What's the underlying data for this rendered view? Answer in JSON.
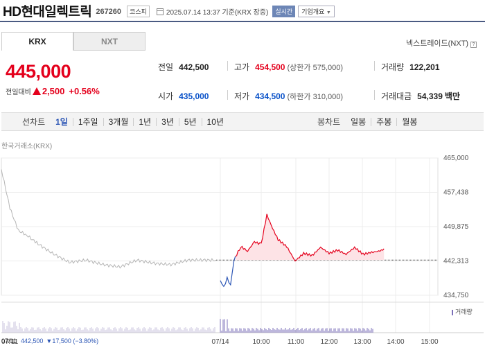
{
  "header": {
    "stock_name": "HD현대일렉트릭",
    "stock_code": "267260",
    "market": "코스피",
    "timestamp": "2025.07.14 13:37 기준(KRX 장중)",
    "realtime_label": "실시간",
    "company_button": "기업개요"
  },
  "tabs": [
    "KRX",
    "NXT"
  ],
  "nxt_link": "넥스트레이드(NXT)",
  "price": "445,000",
  "change": {
    "label": "전일대비",
    "value": "2,500",
    "percent": "+0.56%",
    "direction": "up"
  },
  "stats": {
    "prev_close": {
      "label": "전일",
      "value": "442,500"
    },
    "high": {
      "label": "고가",
      "value": "454,500",
      "limit_label": "상한가",
      "limit": "575,000"
    },
    "volume": {
      "label": "거래량",
      "value": "122,201"
    },
    "open": {
      "label": "시가",
      "value": "435,000"
    },
    "low": {
      "label": "저가",
      "value": "434,500",
      "limit_label": "하한가",
      "limit": "310,000"
    },
    "trade_value": {
      "label": "거래대금",
      "value": "54,339",
      "unit": "백만"
    }
  },
  "toolbar": {
    "line_label": "선차트",
    "line_periods": [
      "1일",
      "1주일",
      "3개월",
      "1년",
      "3년",
      "5년",
      "10년"
    ],
    "active_period": "1일",
    "candle_label": "봉차트",
    "candle_periods": [
      "일봉",
      "주봉",
      "월봉"
    ]
  },
  "chart_label": "한국거래소(KRX)",
  "volume_legend": "거래량",
  "bottom_info": {
    "date": "07/11",
    "prev": "442,500",
    "change": "▼17,500 (−3.80%)"
  },
  "colors": {
    "up": "#e4001c",
    "down": "#2b55b5",
    "prev_day_line": "#b5b5b5",
    "volume": "#7b6fb8",
    "accent": "#4a5a82"
  },
  "chart_data": {
    "type": "line",
    "ylim": [
      434750,
      465000
    ],
    "y_ticks": [
      "465,000",
      "457,438",
      "449,875",
      "442,313",
      "434,750"
    ],
    "x_ticks": [
      "07/11",
      "07/14",
      "10:00",
      "11:00",
      "12:00",
      "13:00",
      "14:00",
      "15:00"
    ],
    "reference_value": 442500,
    "series": [
      {
        "period": "07/11",
        "x": [
          "09:00",
          "09:15",
          "09:30",
          "09:45",
          "10:00",
          "10:30",
          "11:00",
          "11:30",
          "12:00",
          "12:30",
          "13:00",
          "13:30",
          "14:00",
          "14:30",
          "15:00",
          "15:20"
        ],
        "values": [
          462500,
          454000,
          449000,
          448000,
          446500,
          444000,
          442000,
          442500,
          441500,
          441000,
          442500,
          441800,
          441500,
          442500,
          442500,
          442500
        ]
      },
      {
        "period": "07/14",
        "x": [
          "09:00",
          "09:05",
          "09:10",
          "09:15",
          "09:20",
          "09:30",
          "09:40",
          "09:50",
          "10:00",
          "10:10",
          "10:20",
          "10:30",
          "10:45",
          "11:00",
          "11:15",
          "11:30",
          "11:45",
          "12:00",
          "12:15",
          "12:30",
          "12:45",
          "13:00",
          "13:15",
          "13:30",
          "13:37"
        ],
        "values": [
          438000,
          436500,
          438500,
          437000,
          442500,
          445500,
          444500,
          446500,
          446000,
          452500,
          449500,
          447000,
          445500,
          442300,
          444000,
          443500,
          445300,
          444000,
          444700,
          443800,
          445300,
          443800,
          444200,
          444500,
          445000
        ]
      }
    ]
  }
}
